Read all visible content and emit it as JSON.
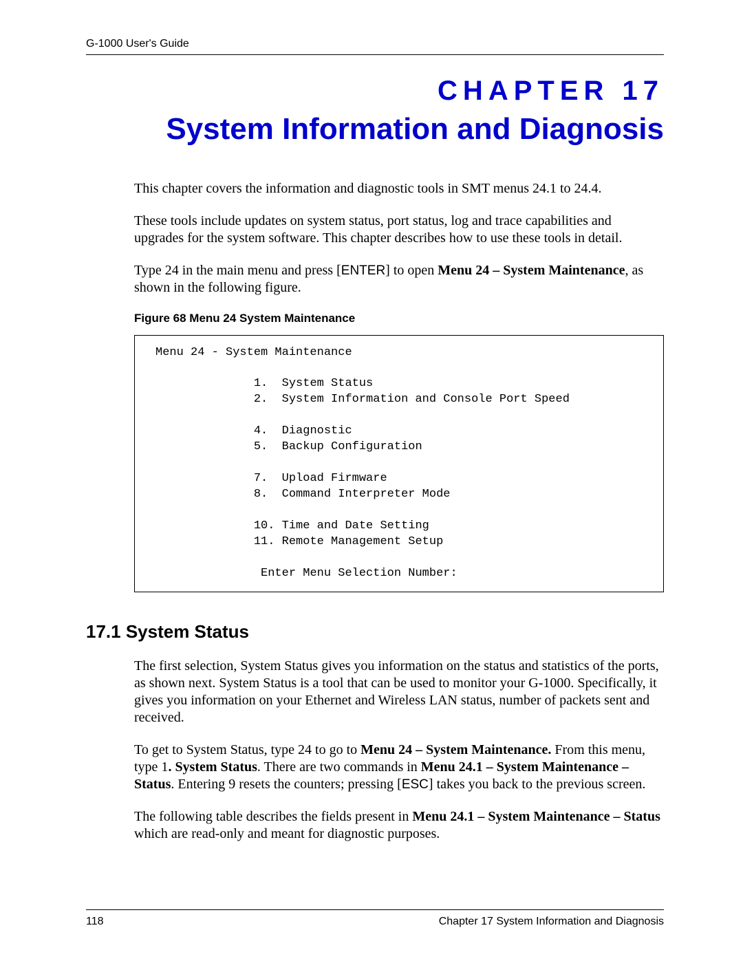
{
  "header": {
    "guide": "G-1000 User's Guide"
  },
  "chapter": {
    "label": "CHAPTER 17",
    "title": "System Information and Diagnosis"
  },
  "intro": {
    "p1": "This chapter covers the information and diagnostic tools in SMT menus 24.1 to 24.4.",
    "p2": "These tools include updates on system status, port status, log and trace capabilities and upgrades for the system software. This chapter describes how to use these tools in detail.",
    "p3_a": "Type 24 in the main menu and press [",
    "p3_enter": "ENTER",
    "p3_b": "] to open ",
    "p3_bold": "Menu 24 – System Maintenance",
    "p3_c": ", as shown in the following figure."
  },
  "figure": {
    "caption": "Figure 68   Menu 24 System Maintenance",
    "menu_title": "Menu 24 - System Maintenance",
    "items": [
      "1.  System Status",
      "2.  System Information and Console Port Speed",
      "",
      "4.  Diagnostic",
      "5.  Backup Configuration",
      "",
      "7.  Upload Firmware",
      "8.  Command Interpreter Mode",
      "",
      "10. Time and Date Setting",
      "11. Remote Management Setup"
    ],
    "prompt": "Enter Menu Selection Number:"
  },
  "section": {
    "heading": "17.1  System Status",
    "p1": "The first selection, System Status gives you information on the status and statistics of the ports, as shown next. System Status is a tool that can be used to monitor your G-1000. Specifically, it gives you information on your Ethernet and Wireless LAN status, number of packets sent and received.",
    "p2_a": "To get to System Status, type 24 to go to ",
    "p2_b1": "Menu 24 – System Maintenance.",
    "p2_b": " From this menu, type 1",
    "p2_b2": ". System Status",
    "p2_c": ". There are two commands in ",
    "p2_b3": "Menu 24.1 – System Maintenance – Status",
    "p2_d": ". Entering 9 resets the counters; pressing [",
    "p2_esc": "ESC",
    "p2_e": "] takes you back to the previous screen.",
    "p3_a": "The following table describes the fields present in ",
    "p3_b1": "Menu 24.1 – System Maintenance – Status",
    "p3_b": " which are read-only and meant for diagnostic purposes."
  },
  "footer": {
    "page": "118",
    "chapter": "Chapter 17 System Information and Diagnosis"
  },
  "colors": {
    "heading_blue": "#0000cc",
    "text": "#000000",
    "background": "#ffffff"
  },
  "fonts": {
    "body": "Times New Roman",
    "headings": "Arial",
    "mono": "Courier New"
  }
}
